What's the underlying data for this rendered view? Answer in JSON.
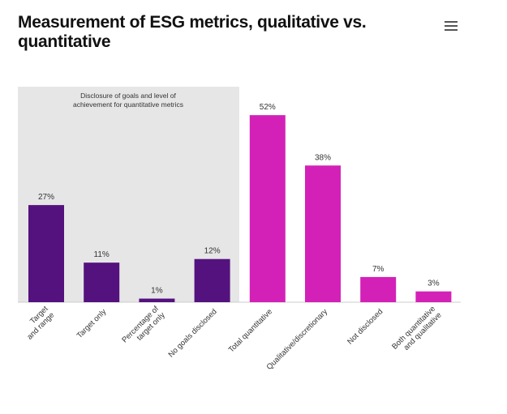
{
  "title": "Measurement of ESG metrics, qualitative vs. quantitative",
  "menu_icon": "hamburger-menu-icon",
  "chart_data": {
    "type": "bar",
    "title": "Measurement of ESG metrics, qualitative vs. quantitative",
    "categories": [
      [
        "Target",
        "and range"
      ],
      [
        "Target only"
      ],
      [
        "Percentage of",
        "target only"
      ],
      [
        "No goals disclosed"
      ],
      [
        "Total quantitative"
      ],
      [
        "Qualitative/discretionary"
      ],
      [
        "Not disclosed"
      ],
      [
        "Both quantitative",
        "and qualitative"
      ]
    ],
    "values": [
      27,
      11,
      1,
      12,
      52,
      38,
      7,
      3
    ],
    "data_labels": [
      "27%",
      "11%",
      "1%",
      "12%",
      "52%",
      "38%",
      "7%",
      "3%"
    ],
    "unit": "%",
    "ylim": [
      0,
      60
    ],
    "grid": false,
    "colors": [
      "#54127e",
      "#54127e",
      "#54127e",
      "#54127e",
      "#d321b8",
      "#d321b8",
      "#d321b8",
      "#d321b8"
    ],
    "panel": {
      "label": [
        "Disclosure of goals and level of",
        "achievement for quantitative metrics"
      ],
      "covers_categories": [
        0,
        3
      ],
      "color": "#e6e6e6"
    }
  }
}
